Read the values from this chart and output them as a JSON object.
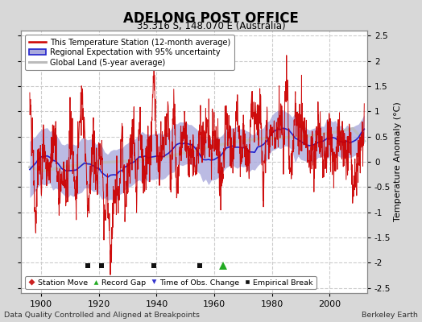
{
  "title": "ADELONG POST OFFICE",
  "subtitle": "35.316 S, 148.070 E (Australia)",
  "xlabel_left": "Data Quality Controlled and Aligned at Breakpoints",
  "xlabel_right": "Berkeley Earth",
  "ylabel": "Temperature Anomaly (°C)",
  "xlim": [
    1893,
    2013
  ],
  "ylim": [
    -2.6,
    2.6
  ],
  "yticks": [
    -2.5,
    -2,
    -1.5,
    -1,
    -0.5,
    0,
    0.5,
    1,
    1.5,
    2,
    2.5
  ],
  "xticks": [
    1900,
    1920,
    1940,
    1960,
    1980,
    2000
  ],
  "background_color": "#d8d8d8",
  "plot_bg_color": "#ffffff",
  "grid_color": "#cccccc",
  "station_color": "#cc0000",
  "regional_color": "#2222cc",
  "regional_fill": "#aaaadd",
  "global_color": "#bbbbbb",
  "legend_items": [
    "This Temperature Station (12-month average)",
    "Regional Expectation with 95% uncertainty",
    "Global Land (5-year average)"
  ],
  "markers": {
    "empirical_breaks": [
      1916,
      1921,
      1939,
      1955
    ],
    "record_gap": [
      1963
    ],
    "time_obs_change": [],
    "station_move": []
  },
  "marker_y": -2.05,
  "seed": 42
}
